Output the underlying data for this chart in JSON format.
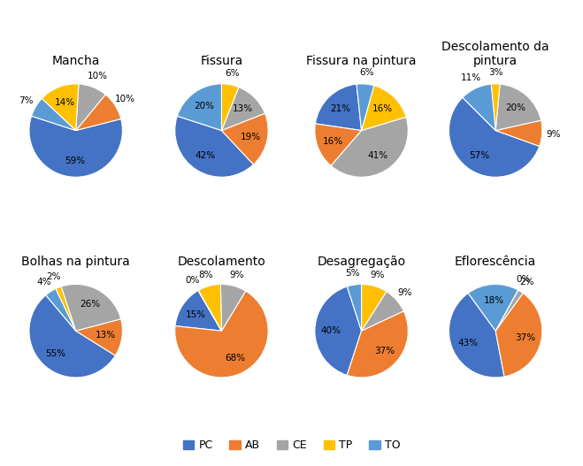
{
  "charts": [
    {
      "title": "Mancha",
      "values": [
        59,
        10,
        10,
        14,
        7
      ],
      "startangle": 162
    },
    {
      "title": "Fissura",
      "values": [
        42,
        19,
        13,
        6,
        20
      ],
      "startangle": 162
    },
    {
      "title": "Fissura na pintura",
      "values": [
        21,
        16,
        41,
        16,
        6
      ],
      "startangle": 96
    },
    {
      "title": "Descolamento da\npintura",
      "values": [
        57,
        9,
        20,
        3,
        11
      ],
      "startangle": 135
    },
    {
      "title": "Bolhas na pintura",
      "values": [
        55,
        13,
        26,
        2,
        4
      ],
      "startangle": 130
    },
    {
      "title": "Descolamento",
      "values": [
        15,
        68,
        9,
        8,
        0
      ],
      "startangle": 120
    },
    {
      "title": "Desagregação",
      "values": [
        40,
        37,
        9,
        9,
        5
      ],
      "startangle": 108
    },
    {
      "title": "Eflorescência",
      "values": [
        43,
        37,
        2,
        0,
        18
      ],
      "startangle": 126
    }
  ],
  "colors": [
    "#4472C4",
    "#ED7D31",
    "#A5A5A5",
    "#FFC000",
    "#5B9BD5"
  ],
  "labels": [
    "PC",
    "AB",
    "CE",
    "TP",
    "TO"
  ],
  "figsize": [
    6.59,
    5.27
  ],
  "dpi": 100,
  "title_fontsize": 10,
  "pct_fontsize": 7.5,
  "inside_threshold": 12
}
